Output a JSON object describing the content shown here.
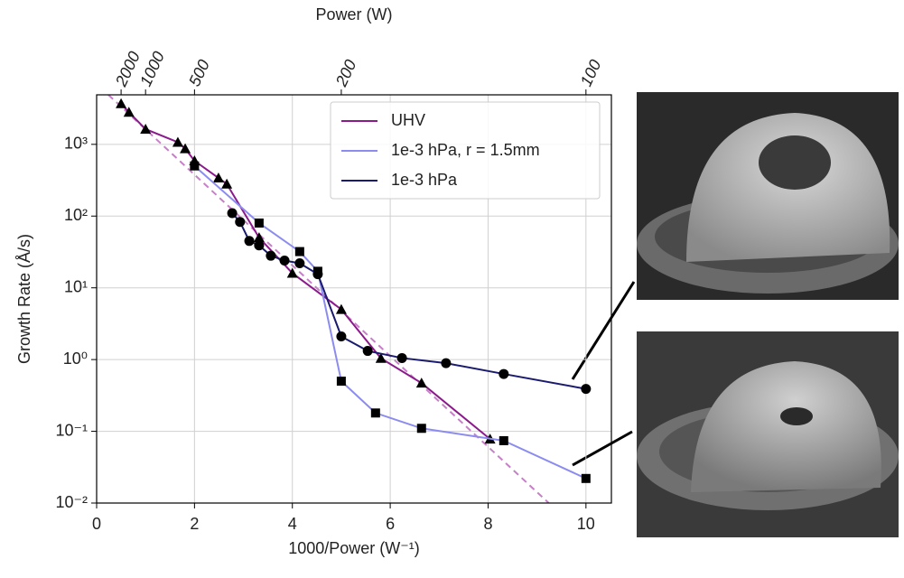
{
  "chart_data": {
    "type": "line",
    "x_label": "1000/Power (W⁻¹)",
    "y_label": "Growth Rate (Å/s)",
    "x2_label": "Power (W)",
    "xlim": [
      0,
      10.52
    ],
    "xticks": [
      0,
      2,
      4,
      6,
      8,
      10
    ],
    "x2ticks": [
      2000,
      1000,
      500,
      200,
      100
    ],
    "ylim": [
      0.01,
      4900
    ],
    "log_y": true,
    "grid": true,
    "legend": "upper right",
    "yticks": [
      {
        "value": 0.01,
        "label": "10⁻²"
      },
      {
        "value": 0.1,
        "label": "10⁻¹"
      },
      {
        "value": 1,
        "label": "10⁰"
      },
      {
        "value": 10,
        "label": "10¹"
      },
      {
        "value": 100,
        "label": "10²"
      },
      {
        "value": 1000,
        "label": "10³"
      }
    ],
    "series": [
      {
        "name": "UHV",
        "color": "#8b1a8b",
        "marker": "triangle",
        "x": [
          0.5,
          0.66,
          1,
          1.66,
          1.81,
          2,
          2.49,
          2.66,
          3.32,
          4.0,
          5,
          5.81,
          6.64,
          8.04
        ],
        "values": [
          3700,
          2800,
          1630,
          1070,
          870,
          590,
          340,
          280,
          50,
          16,
          5.0,
          1.04,
          0.47,
          0.078
        ]
      },
      {
        "name": "1e-3 hPa, r = 1.5mm",
        "color": "#8c8cf0",
        "marker": "square",
        "x": [
          2,
          3.32,
          4.15,
          4.52,
          5,
          5.7,
          6.64,
          8.32,
          10
        ],
        "values": [
          500,
          80,
          32,
          17,
          0.5,
          0.18,
          0.11,
          0.074,
          0.022
        ]
      },
      {
        "name": "1e-3 hPa",
        "color": "#1a1a6e",
        "marker": "circle",
        "x": [
          2.77,
          2.93,
          3.12,
          3.32,
          3.56,
          3.84,
          4.15,
          4.52,
          5,
          5.54,
          6.24,
          7.14,
          8.32,
          10
        ],
        "values": [
          110,
          83,
          45,
          39,
          28,
          24,
          22,
          15.5,
          2.1,
          1.32,
          1.05,
          0.89,
          0.63,
          0.39
        ]
      }
    ],
    "fit_line": {
      "color": "#c77fc7",
      "x": [
        0.24,
        9.24
      ],
      "values": [
        4900,
        0.01
      ]
    }
  }
}
